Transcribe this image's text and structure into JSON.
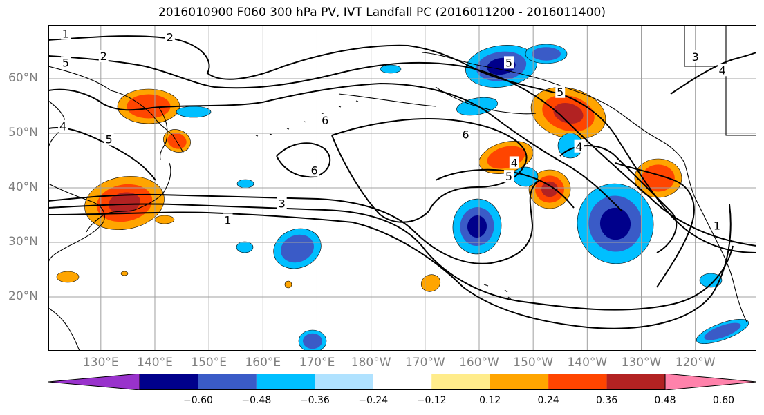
{
  "title": "2016010900 F060 300 hPa PV, IVT Landfall PC (2016011200 - 2016011400)",
  "lat_labels": [
    {
      "text": "60°N",
      "lat": 60
    },
    {
      "text": "50°N",
      "lat": 50
    },
    {
      "text": "40°N",
      "lat": 40
    },
    {
      "text": "30°N",
      "lat": 30
    },
    {
      "text": "20°N",
      "lat": 20
    }
  ],
  "lon_labels": [
    {
      "text": "130°E",
      "lon": 130
    },
    {
      "text": "140°E",
      "lon": 140
    },
    {
      "text": "150°E",
      "lon": 150
    },
    {
      "text": "160°E",
      "lon": 160
    },
    {
      "text": "170°E",
      "lon": 170
    },
    {
      "text": "180°W",
      "lon": 180
    },
    {
      "text": "170°W",
      "lon": 190
    },
    {
      "text": "160°W",
      "lon": 200
    },
    {
      "text": "150°W",
      "lon": 210
    },
    {
      "text": "140°W",
      "lon": 220
    },
    {
      "text": "130°W",
      "lon": 230
    },
    {
      "text": "120°W",
      "lon": 240
    }
  ],
  "colorbar": {
    "colors": [
      "#9932cc",
      "#00008b",
      "#3a5bc7",
      "#00bfff",
      "#b0e2ff",
      "#ffffff",
      "#ffec8b",
      "#ffa500",
      "#ff4500",
      "#b22222",
      "#ff82ab"
    ],
    "labels": [
      "−0.60",
      "−0.48",
      "−0.36",
      "−0.24",
      "−0.12",
      "0.12",
      "0.24",
      "0.36",
      "0.48",
      "0.60"
    ]
  },
  "contour_labels": [
    {
      "text": "1",
      "lon": 123.5,
      "lat": 68.3
    },
    {
      "text": "2",
      "lon": 142.8,
      "lat": 67.6
    },
    {
      "text": "2",
      "lon": 130.5,
      "lat": 64.1
    },
    {
      "text": "5",
      "lon": 123.5,
      "lat": 62.9
    },
    {
      "text": "4",
      "lon": 123.0,
      "lat": 51.2
    },
    {
      "text": "5",
      "lon": 131.5,
      "lat": 48.8
    },
    {
      "text": "6",
      "lon": 171.5,
      "lat": 52.3
    },
    {
      "text": "6",
      "lon": 169.5,
      "lat": 43.1
    },
    {
      "text": "6",
      "lon": 197.5,
      "lat": 49.7
    },
    {
      "text": "5",
      "lon": 205.5,
      "lat": 62.9
    },
    {
      "text": "4",
      "lon": 206.5,
      "lat": 44.5
    },
    {
      "text": "5",
      "lon": 205.5,
      "lat": 42.0
    },
    {
      "text": "3",
      "lon": 163.5,
      "lat": 37.0
    },
    {
      "text": "1",
      "lon": 153.5,
      "lat": 34.0
    },
    {
      "text": "4",
      "lon": 218.5,
      "lat": 47.5
    },
    {
      "text": "5",
      "lon": 215.0,
      "lat": 57.5
    },
    {
      "text": "3",
      "lon": 240.0,
      "lat": 64.0
    },
    {
      "text": "4",
      "lon": 245.0,
      "lat": 61.5
    },
    {
      "text": "1",
      "lon": 244.0,
      "lat": 33.0
    }
  ]
}
